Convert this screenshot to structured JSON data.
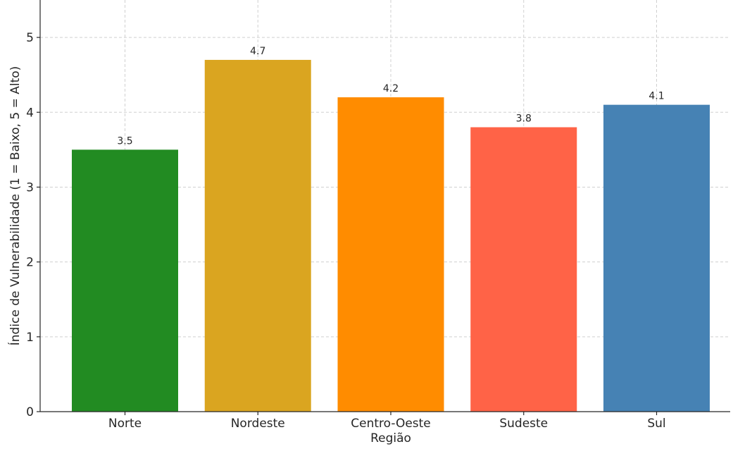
{
  "chart_data": {
    "type": "bar",
    "title": "",
    "xlabel": "Região",
    "ylabel": "Índice de Vulnerabilidade (1 = Baixo, 5 = Alto)",
    "categories": [
      "Norte",
      "Nordeste",
      "Centro-Oeste",
      "Sudeste",
      "Sul"
    ],
    "values": [
      3.5,
      4.7,
      4.2,
      3.8,
      4.1
    ],
    "value_labels": [
      "3.5",
      "4.7",
      "4.2",
      "3.8",
      "4.1"
    ],
    "colors": [
      "#228b22",
      "#daa520",
      "#ff8c00",
      "#ff6347",
      "#4682b4"
    ],
    "ylim": [
      0,
      5.5
    ],
    "yticks": [
      0,
      1,
      2,
      3,
      4,
      5
    ],
    "ytick_labels": [
      "0",
      "1",
      "2",
      "3",
      "4",
      "5"
    ],
    "grid": true,
    "legend": false
  }
}
